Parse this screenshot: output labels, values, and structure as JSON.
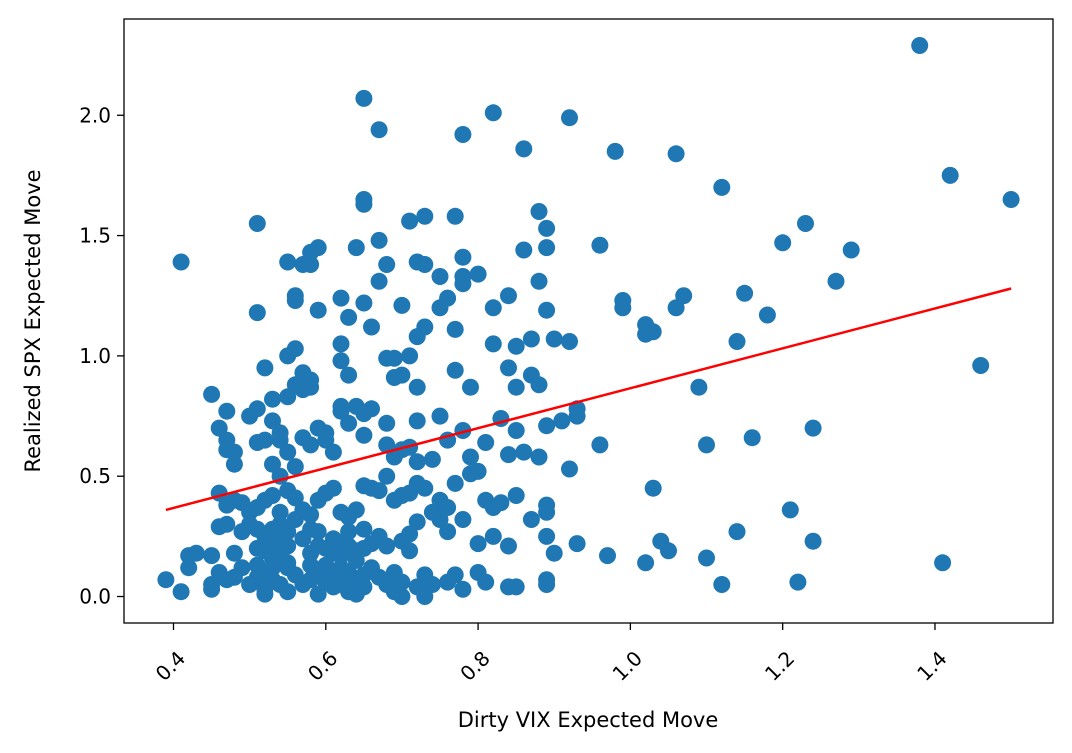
{
  "chart_data": {
    "type": "scatter",
    "xlabel": "Dirty VIX Expected Move",
    "ylabel": "Realized SPX Expected Move",
    "xlim": [
      0.335,
      1.555
    ],
    "ylim": [
      -0.11,
      2.4
    ],
    "x_ticks": [
      {
        "value": 0.4,
        "label": "0.4"
      },
      {
        "value": 0.6,
        "label": "0.6"
      },
      {
        "value": 0.8,
        "label": "0.8"
      },
      {
        "value": 1.0,
        "label": "1.0"
      },
      {
        "value": 1.2,
        "label": "1.2"
      },
      {
        "value": 1.4,
        "label": "1.4"
      }
    ],
    "y_ticks": [
      {
        "value": 0.0,
        "label": "0.0"
      },
      {
        "value": 0.5,
        "label": "0.5"
      },
      {
        "value": 1.0,
        "label": "1.0"
      },
      {
        "value": 1.5,
        "label": "1.5"
      },
      {
        "value": 2.0,
        "label": "2.0"
      }
    ],
    "grid": false,
    "legend": "none",
    "colors": {
      "points": "#1f77b4",
      "fit_line": "#ff0000"
    },
    "fit_line": {
      "x": [
        0.39,
        1.5
      ],
      "y": [
        0.36,
        1.28
      ]
    },
    "points": [
      [
        0.41,
        1.39
      ],
      [
        0.51,
        1.55
      ],
      [
        0.65,
        2.07
      ],
      [
        0.67,
        1.94
      ],
      [
        0.78,
        1.92
      ],
      [
        0.82,
        2.01
      ],
      [
        0.86,
        1.86
      ],
      [
        0.92,
        1.99
      ],
      [
        0.98,
        1.85
      ],
      [
        1.06,
        1.84
      ],
      [
        1.12,
        1.7
      ],
      [
        1.38,
        2.29
      ],
      [
        1.42,
        1.75
      ],
      [
        1.5,
        1.65
      ],
      [
        0.65,
        1.65
      ],
      [
        0.65,
        1.63
      ],
      [
        0.71,
        1.56
      ],
      [
        0.73,
        1.58
      ],
      [
        0.77,
        1.58
      ],
      [
        0.88,
        1.6
      ],
      [
        0.89,
        1.53
      ],
      [
        0.96,
        1.46
      ],
      [
        1.2,
        1.47
      ],
      [
        1.23,
        1.55
      ],
      [
        1.29,
        1.44
      ],
      [
        1.27,
        1.31
      ],
      [
        1.15,
        1.26
      ],
      [
        1.18,
        1.17
      ],
      [
        0.55,
        1.39
      ],
      [
        0.57,
        1.38
      ],
      [
        0.58,
        1.38
      ],
      [
        0.58,
        1.43
      ],
      [
        0.59,
        1.45
      ],
      [
        0.64,
        1.45
      ],
      [
        0.67,
        1.48
      ],
      [
        0.68,
        1.38
      ],
      [
        0.67,
        1.31
      ],
      [
        0.72,
        1.39
      ],
      [
        0.73,
        1.38
      ],
      [
        0.75,
        1.33
      ],
      [
        0.76,
        1.24
      ],
      [
        0.78,
        1.33
      ],
      [
        0.78,
        1.41
      ],
      [
        0.8,
        1.34
      ],
      [
        0.78,
        1.3
      ],
      [
        0.86,
        1.44
      ],
      [
        0.89,
        1.45
      ],
      [
        0.88,
        1.31
      ],
      [
        0.51,
        1.18
      ],
      [
        0.56,
        1.25
      ],
      [
        0.56,
        1.23
      ],
      [
        0.59,
        1.19
      ],
      [
        0.62,
        1.24
      ],
      [
        0.63,
        1.16
      ],
      [
        0.65,
        1.22
      ],
      [
        0.66,
        1.12
      ],
      [
        0.7,
        1.21
      ],
      [
        0.73,
        1.12
      ],
      [
        0.75,
        1.2
      ],
      [
        0.77,
        1.11
      ],
      [
        0.82,
        1.2
      ],
      [
        0.84,
        1.25
      ],
      [
        0.89,
        1.19
      ],
      [
        0.99,
        1.23
      ],
      [
        0.99,
        1.2
      ],
      [
        1.02,
        1.13
      ],
      [
        1.03,
        1.1
      ],
      [
        1.02,
        1.09
      ],
      [
        1.06,
        1.2
      ],
      [
        1.07,
        1.25
      ],
      [
        0.52,
        0.95
      ],
      [
        0.55,
        1.0
      ],
      [
        0.56,
        1.03
      ],
      [
        0.57,
        0.93
      ],
      [
        0.58,
        0.9
      ],
      [
        0.57,
        0.86
      ],
      [
        0.55,
        0.83
      ],
      [
        0.56,
        0.88
      ],
      [
        0.58,
        0.87
      ],
      [
        0.62,
        1.05
      ],
      [
        0.62,
        0.98
      ],
      [
        0.63,
        0.92
      ],
      [
        0.68,
        0.99
      ],
      [
        0.69,
        0.99
      ],
      [
        0.69,
        0.91
      ],
      [
        0.7,
        0.92
      ],
      [
        0.71,
        1.0
      ],
      [
        0.72,
        1.08
      ],
      [
        0.72,
        0.87
      ],
      [
        0.77,
        0.94
      ],
      [
        0.79,
        0.87
      ],
      [
        0.82,
        1.05
      ],
      [
        0.84,
        0.95
      ],
      [
        0.85,
        1.04
      ],
      [
        0.85,
        0.87
      ],
      [
        0.87,
        1.07
      ],
      [
        0.87,
        0.92
      ],
      [
        0.88,
        0.88
      ],
      [
        0.9,
        1.07
      ],
      [
        0.92,
        1.06
      ],
      [
        1.09,
        0.87
      ],
      [
        1.14,
        1.06
      ],
      [
        1.46,
        0.96
      ],
      [
        0.45,
        0.84
      ],
      [
        0.46,
        0.7
      ],
      [
        0.47,
        0.77
      ],
      [
        0.47,
        0.65
      ],
      [
        0.47,
        0.61
      ],
      [
        0.48,
        0.6
      ],
      [
        0.48,
        0.55
      ],
      [
        0.5,
        0.75
      ],
      [
        0.51,
        0.78
      ],
      [
        0.51,
        0.64
      ],
      [
        0.52,
        0.65
      ],
      [
        0.53,
        0.82
      ],
      [
        0.53,
        0.73
      ],
      [
        0.54,
        0.68
      ],
      [
        0.54,
        0.65
      ],
      [
        0.53,
        0.55
      ],
      [
        0.55,
        0.6
      ],
      [
        0.56,
        0.54
      ],
      [
        0.57,
        0.66
      ],
      [
        0.58,
        0.63
      ],
      [
        0.59,
        0.7
      ],
      [
        0.6,
        0.68
      ],
      [
        0.6,
        0.65
      ],
      [
        0.61,
        0.6
      ],
      [
        0.62,
        0.79
      ],
      [
        0.62,
        0.77
      ],
      [
        0.63,
        0.72
      ],
      [
        0.64,
        0.79
      ],
      [
        0.65,
        0.76
      ],
      [
        0.66,
        0.78
      ],
      [
        0.65,
        0.67
      ],
      [
        0.68,
        0.72
      ],
      [
        0.68,
        0.63
      ],
      [
        0.69,
        0.58
      ],
      [
        0.7,
        0.61
      ],
      [
        0.71,
        0.62
      ],
      [
        0.72,
        0.73
      ],
      [
        0.72,
        0.56
      ],
      [
        0.74,
        0.57
      ],
      [
        0.75,
        0.75
      ],
      [
        0.76,
        0.65
      ],
      [
        0.78,
        0.69
      ],
      [
        0.79,
        0.58
      ],
      [
        0.81,
        0.64
      ],
      [
        0.83,
        0.74
      ],
      [
        0.84,
        0.59
      ],
      [
        0.85,
        0.69
      ],
      [
        0.86,
        0.6
      ],
      [
        0.88,
        0.58
      ],
      [
        0.89,
        0.71
      ],
      [
        0.91,
        0.73
      ],
      [
        0.93,
        0.78
      ],
      [
        0.93,
        0.75
      ],
      [
        0.96,
        0.63
      ],
      [
        1.1,
        0.63
      ],
      [
        1.16,
        0.66
      ],
      [
        1.24,
        0.7
      ],
      [
        0.46,
        0.43
      ],
      [
        0.47,
        0.38
      ],
      [
        0.48,
        0.4
      ],
      [
        0.49,
        0.39
      ],
      [
        0.5,
        0.35
      ],
      [
        0.51,
        0.37
      ],
      [
        0.52,
        0.4
      ],
      [
        0.53,
        0.42
      ],
      [
        0.54,
        0.5
      ],
      [
        0.54,
        0.35
      ],
      [
        0.55,
        0.44
      ],
      [
        0.56,
        0.41
      ],
      [
        0.57,
        0.36
      ],
      [
        0.58,
        0.34
      ],
      [
        0.59,
        0.4
      ],
      [
        0.6,
        0.43
      ],
      [
        0.61,
        0.45
      ],
      [
        0.62,
        0.35
      ],
      [
        0.63,
        0.33
      ],
      [
        0.64,
        0.36
      ],
      [
        0.65,
        0.46
      ],
      [
        0.66,
        0.45
      ],
      [
        0.67,
        0.44
      ],
      [
        0.68,
        0.5
      ],
      [
        0.69,
        0.4
      ],
      [
        0.7,
        0.42
      ],
      [
        0.71,
        0.43
      ],
      [
        0.72,
        0.47
      ],
      [
        0.73,
        0.45
      ],
      [
        0.74,
        0.35
      ],
      [
        0.75,
        0.4
      ],
      [
        0.76,
        0.37
      ],
      [
        0.77,
        0.47
      ],
      [
        0.78,
        0.32
      ],
      [
        0.79,
        0.51
      ],
      [
        0.8,
        0.52
      ],
      [
        0.81,
        0.4
      ],
      [
        0.82,
        0.37
      ],
      [
        0.83,
        0.39
      ],
      [
        0.85,
        0.42
      ],
      [
        0.87,
        0.32
      ],
      [
        0.89,
        0.35
      ],
      [
        0.89,
        0.38
      ],
      [
        0.92,
        0.53
      ],
      [
        1.03,
        0.45
      ],
      [
        0.46,
        0.29
      ],
      [
        0.47,
        0.3
      ],
      [
        0.49,
        0.27
      ],
      [
        0.5,
        0.3
      ],
      [
        0.51,
        0.28
      ],
      [
        0.51,
        0.2
      ],
      [
        0.52,
        0.25
      ],
      [
        0.52,
        0.19
      ],
      [
        0.53,
        0.28
      ],
      [
        0.53,
        0.22
      ],
      [
        0.53,
        0.16
      ],
      [
        0.54,
        0.3
      ],
      [
        0.54,
        0.24
      ],
      [
        0.54,
        0.18
      ],
      [
        0.55,
        0.27
      ],
      [
        0.55,
        0.21
      ],
      [
        0.55,
        0.14
      ],
      [
        0.56,
        0.32
      ],
      [
        0.57,
        0.24
      ],
      [
        0.58,
        0.28
      ],
      [
        0.58,
        0.18
      ],
      [
        0.59,
        0.27
      ],
      [
        0.59,
        0.21
      ],
      [
        0.6,
        0.2
      ],
      [
        0.61,
        0.18
      ],
      [
        0.61,
        0.24
      ],
      [
        0.62,
        0.22
      ],
      [
        0.62,
        0.17
      ],
      [
        0.63,
        0.21
      ],
      [
        0.63,
        0.27
      ],
      [
        0.64,
        0.19
      ],
      [
        0.64,
        0.15
      ],
      [
        0.65,
        0.28
      ],
      [
        0.65,
        0.2
      ],
      [
        0.66,
        0.22
      ],
      [
        0.67,
        0.25
      ],
      [
        0.68,
        0.21
      ],
      [
        0.7,
        0.23
      ],
      [
        0.71,
        0.26
      ],
      [
        0.71,
        0.19
      ],
      [
        0.72,
        0.31
      ],
      [
        0.75,
        0.32
      ],
      [
        0.76,
        0.27
      ],
      [
        0.8,
        0.22
      ],
      [
        0.82,
        0.25
      ],
      [
        0.84,
        0.21
      ],
      [
        0.89,
        0.25
      ],
      [
        0.9,
        0.18
      ],
      [
        0.93,
        0.22
      ],
      [
        0.97,
        0.17
      ],
      [
        1.02,
        0.14
      ],
      [
        1.04,
        0.23
      ],
      [
        1.05,
        0.19
      ],
      [
        1.1,
        0.16
      ],
      [
        1.14,
        0.27
      ],
      [
        1.21,
        0.36
      ],
      [
        1.24,
        0.23
      ],
      [
        0.39,
        0.07
      ],
      [
        0.41,
        0.02
      ],
      [
        0.42,
        0.12
      ],
      [
        0.42,
        0.17
      ],
      [
        0.43,
        0.18
      ],
      [
        0.45,
        0.17
      ],
      [
        0.45,
        0.05
      ],
      [
        0.45,
        0.03
      ],
      [
        0.46,
        0.1
      ],
      [
        0.47,
        0.07
      ],
      [
        0.48,
        0.18
      ],
      [
        0.48,
        0.08
      ],
      [
        0.49,
        0.12
      ],
      [
        0.5,
        0.05
      ],
      [
        0.51,
        0.13
      ],
      [
        0.51,
        0.08
      ],
      [
        0.52,
        0.1
      ],
      [
        0.52,
        0.03
      ],
      [
        0.52,
        0.01
      ],
      [
        0.53,
        0.12
      ],
      [
        0.53,
        0.07
      ],
      [
        0.54,
        0.15
      ],
      [
        0.54,
        0.05
      ],
      [
        0.55,
        0.12
      ],
      [
        0.55,
        0.02
      ],
      [
        0.56,
        0.09
      ],
      [
        0.57,
        0.05
      ],
      [
        0.58,
        0.13
      ],
      [
        0.58,
        0.07
      ],
      [
        0.59,
        0.1
      ],
      [
        0.59,
        0.01
      ],
      [
        0.6,
        0.06
      ],
      [
        0.6,
        0.13
      ],
      [
        0.61,
        0.09
      ],
      [
        0.61,
        0.04
      ],
      [
        0.62,
        0.12
      ],
      [
        0.62,
        0.05
      ],
      [
        0.63,
        0.1
      ],
      [
        0.63,
        0.02
      ],
      [
        0.64,
        0.07
      ],
      [
        0.64,
        0.01
      ],
      [
        0.65,
        0.09
      ],
      [
        0.65,
        0.04
      ],
      [
        0.66,
        0.12
      ],
      [
        0.67,
        0.08
      ],
      [
        0.68,
        0.05
      ],
      [
        0.69,
        0.1
      ],
      [
        0.69,
        0.02
      ],
      [
        0.7,
        0.06
      ],
      [
        0.7,
        0.0
      ],
      [
        0.72,
        0.04
      ],
      [
        0.73,
        0.09
      ],
      [
        0.73,
        0.0
      ],
      [
        0.74,
        0.05
      ],
      [
        0.76,
        0.06
      ],
      [
        0.77,
        0.09
      ],
      [
        0.78,
        0.03
      ],
      [
        0.8,
        0.1
      ],
      [
        0.81,
        0.06
      ],
      [
        0.84,
        0.04
      ],
      [
        0.85,
        0.04
      ],
      [
        0.89,
        0.07
      ],
      [
        0.89,
        0.05
      ],
      [
        1.12,
        0.05
      ],
      [
        1.22,
        0.06
      ],
      [
        1.41,
        0.14
      ]
    ]
  }
}
